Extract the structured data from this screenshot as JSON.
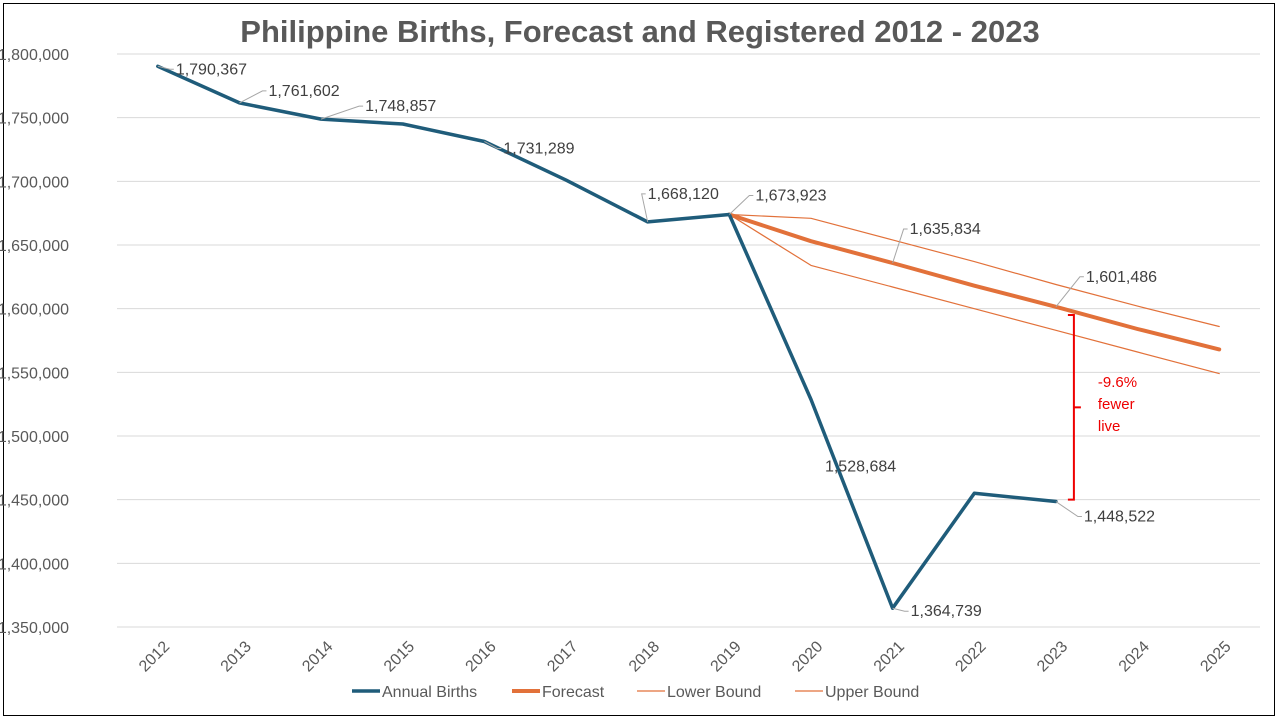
{
  "chart_data": {
    "type": "line",
    "title": "Philippine Births, Forecast and Registered 2012 - 2023",
    "xlabel": "",
    "ylabel": "",
    "ylim": [
      1350000,
      1800000
    ],
    "y_ticks": [
      "1,350,000",
      "1,400,000",
      "1,450,000",
      "1,500,000",
      "1,550,000",
      "1,600,000",
      "1,650,000",
      "1,700,000",
      "1,750,000",
      "1,800,000"
    ],
    "categories": [
      "2012",
      "2013",
      "2014",
      "2015",
      "2016",
      "2017",
      "2018",
      "2019",
      "2020",
      "2021",
      "2022",
      "2023",
      "2024",
      "2025"
    ],
    "grid": "horizontal",
    "legend_position": "bottom",
    "series": [
      {
        "name": "Annual Births",
        "color": "#1f5c7a",
        "values": [
          1790367,
          1761602,
          1748857,
          1745000,
          1731289,
          1701000,
          1668120,
          1673923,
          1528684,
          1364739,
          1455000,
          1448522,
          null,
          null
        ]
      },
      {
        "name": "Forecast",
        "color": "#e2713a",
        "values": [
          null,
          null,
          null,
          null,
          null,
          null,
          null,
          1673923,
          1653000,
          1635834,
          1618000,
          1601486,
          1584000,
          1568000
        ]
      },
      {
        "name": "Lower Bound",
        "color": "#e2713a",
        "values": [
          null,
          null,
          null,
          null,
          null,
          null,
          null,
          1673923,
          1634000,
          1617000,
          1600000,
          1583000,
          1566000,
          1549000
        ]
      },
      {
        "name": "Upper Bound",
        "color": "#e2713a",
        "values": [
          null,
          null,
          null,
          null,
          null,
          null,
          null,
          1673923,
          1671000,
          1654000,
          1637000,
          1619000,
          1602000,
          1586000
        ]
      }
    ],
    "data_labels": [
      {
        "series": "Annual Births",
        "category": "2012",
        "text": "1,790,367"
      },
      {
        "series": "Annual Births",
        "category": "2013",
        "text": "1,761,602"
      },
      {
        "series": "Annual Births",
        "category": "2014",
        "text": "1,748,857"
      },
      {
        "series": "Annual Births",
        "category": "2016",
        "text": "1,731,289"
      },
      {
        "series": "Annual Births",
        "category": "2018",
        "text": "1,668,120"
      },
      {
        "series": "Annual Births",
        "category": "2019",
        "text": "1,673,923"
      },
      {
        "series": "Annual Births",
        "category": "2020",
        "text": "1,528,684"
      },
      {
        "series": "Annual Births",
        "category": "2021",
        "text": "1,364,739"
      },
      {
        "series": "Annual Births",
        "category": "2023",
        "text": "1,448,522"
      },
      {
        "series": "Forecast",
        "category": "2021",
        "text": "1,635,834"
      },
      {
        "series": "Forecast",
        "category": "2023",
        "text": "1,601,486"
      }
    ],
    "annotation": {
      "lines": [
        "-9.6%",
        "fewer",
        "live"
      ],
      "color": "#ee0000",
      "from_value": 1595000,
      "to_value": 1450000,
      "category": "2023"
    }
  }
}
